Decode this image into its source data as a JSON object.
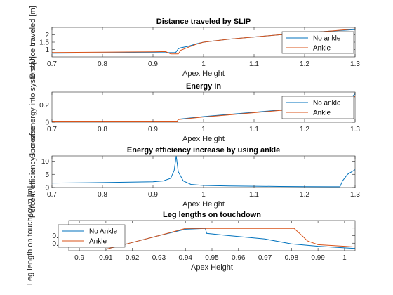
{
  "chart_data": [
    {
      "type": "line",
      "title": "Distance traveled by SLIP",
      "xlabel": "Apex Height",
      "ylabel": "Distance traveled [m]",
      "xlim": [
        0.7,
        1.3
      ],
      "ylim": [
        0.5,
        2.5
      ],
      "xticks": [
        "0.7",
        "0.8",
        "0.9",
        "1",
        "1.1",
        "1.2",
        "1.3"
      ],
      "yticks": [
        "1",
        "1.5",
        "2"
      ],
      "legend_position": "top-right",
      "series": [
        {
          "name": "No ankle",
          "color": "#0072BD",
          "x": [
            0.7,
            0.8,
            0.9,
            0.945,
            0.95,
            0.955,
            0.97,
            0.985,
            1.0,
            1.05,
            1.1,
            1.15,
            1.2,
            1.25,
            1.3
          ],
          "y": [
            0.75,
            0.77,
            0.79,
            0.8,
            1.05,
            1.12,
            1.22,
            1.38,
            1.5,
            1.7,
            1.85,
            2.0,
            2.12,
            2.25,
            2.35
          ]
        },
        {
          "name": "Ankle",
          "color": "#D95319",
          "x": [
            0.7,
            0.8,
            0.9,
            0.925,
            0.935,
            0.95,
            0.955,
            0.97,
            0.985,
            1.0,
            1.05,
            1.1,
            1.15,
            1.2,
            1.25,
            1.3
          ],
          "y": [
            0.8,
            0.82,
            0.85,
            0.86,
            0.7,
            0.7,
            0.95,
            1.15,
            1.35,
            1.5,
            1.7,
            1.85,
            2.0,
            2.12,
            2.25,
            2.4
          ]
        }
      ]
    },
    {
      "type": "line",
      "title": "Energy In",
      "xlabel": "Apex Height",
      "ylabel": "Sum of energy into system [J]",
      "xlim": [
        0.7,
        1.3
      ],
      "ylim": [
        0,
        0.35
      ],
      "xticks": [
        "0.7",
        "0.8",
        "0.9",
        "1",
        "1.1",
        "1.2",
        "1.3"
      ],
      "yticks": [
        "0",
        "0.2"
      ],
      "legend_position": "top-right",
      "series": [
        {
          "name": "No ankle",
          "color": "#0072BD",
          "x": [
            0.7,
            0.8,
            0.9,
            0.948,
            0.95,
            1.0,
            1.05,
            1.1,
            1.15,
            1.2,
            1.25,
            1.28,
            1.3
          ],
          "y": [
            0.01,
            0.01,
            0.01,
            0.01,
            0.035,
            0.065,
            0.09,
            0.115,
            0.14,
            0.165,
            0.19,
            0.22,
            0.33
          ]
        },
        {
          "name": "Ankle",
          "color": "#D95319",
          "x": [
            0.7,
            0.8,
            0.9,
            0.948,
            0.95,
            1.0,
            1.05,
            1.1,
            1.15,
            1.2,
            1.25,
            1.28,
            1.3
          ],
          "y": [
            0.012,
            0.012,
            0.012,
            0.012,
            0.03,
            0.06,
            0.085,
            0.11,
            0.135,
            0.16,
            0.185,
            0.21,
            0.3
          ]
        }
      ]
    },
    {
      "type": "line",
      "title": "Energy efficiency increase by using ankle",
      "xlabel": "Apex Height",
      "ylabel": "Percent efficiency increase",
      "xlim": [
        0.7,
        1.3
      ],
      "ylim": [
        0,
        12
      ],
      "xticks": [
        "0.7",
        "0.8",
        "0.9",
        "1",
        "1.1",
        "1.2",
        "1.3"
      ],
      "yticks": [
        "0",
        "5",
        "10"
      ],
      "series": [
        {
          "name": "",
          "color": "#0072BD",
          "x": [
            0.7,
            0.8,
            0.9,
            0.92,
            0.935,
            0.942,
            0.946,
            0.95,
            0.96,
            0.975,
            1.0,
            1.05,
            1.1,
            1.15,
            1.2,
            1.25,
            1.27,
            1.275,
            1.285,
            1.3
          ],
          "y": [
            1.7,
            1.9,
            2.2,
            2.5,
            3.5,
            6.5,
            12.0,
            6.0,
            2.5,
            1.2,
            0.8,
            0.6,
            0.5,
            0.4,
            0.35,
            0.3,
            0.3,
            2.5,
            5.0,
            6.8
          ]
        }
      ]
    },
    {
      "type": "line",
      "title": "Leg lengths on touchdown",
      "xlabel": "Apex Height",
      "ylabel": "Leg length on touchdown [m]",
      "xlim": [
        0.896,
        1.004
      ],
      "ylim": [
        0.97,
        1.01
      ],
      "xticks": [
        "0.9",
        "0.91",
        "0.92",
        "0.93",
        "0.94",
        "0.95",
        "0.96",
        "0.97",
        "0.98",
        "0.99",
        "1"
      ],
      "yticks": [
        "0.98",
        "0.99",
        "1"
      ],
      "legend_position": "top-left",
      "series": [
        {
          "name": "No Ankle",
          "color": "#0072BD",
          "x": [
            0.91,
            0.92,
            0.93,
            0.94,
            0.9475,
            0.948,
            0.955,
            0.97,
            0.98,
            0.99,
            1.004
          ],
          "y": [
            0.972,
            0.981,
            0.99,
            0.9985,
            0.9995,
            0.993,
            0.9905,
            0.9855,
            0.979,
            0.976,
            0.973
          ]
        },
        {
          "name": "Ankle",
          "color": "#D95319",
          "x": [
            0.91,
            0.92,
            0.93,
            0.94,
            0.95,
            0.96,
            0.97,
            0.981,
            0.984,
            0.986,
            0.99,
            1.0,
            1.004
          ],
          "y": [
            0.972,
            0.981,
            0.99,
            0.9995,
            0.9995,
            0.9995,
            0.9995,
            0.9995,
            0.99,
            0.983,
            0.978,
            0.976,
            0.975
          ]
        }
      ]
    }
  ]
}
